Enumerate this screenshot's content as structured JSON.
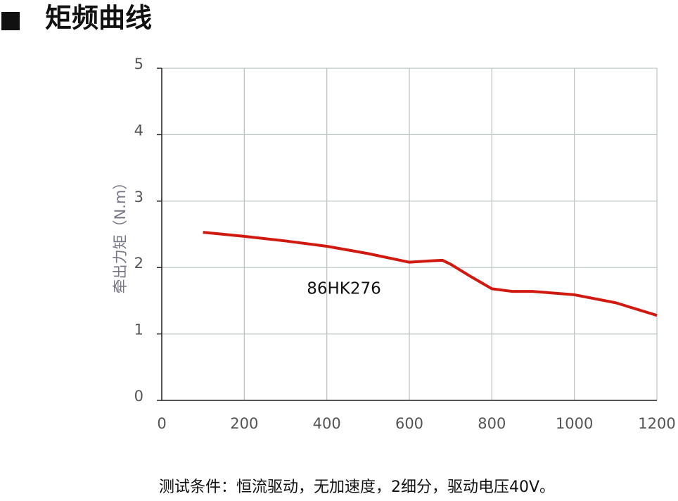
{
  "chart_data": {
    "type": "line",
    "title": "矩频曲线",
    "y_label": "牵出力矩（N.m）",
    "note": "测试条件：恒流驱动，无加速度，2细分，驱动电压40V。",
    "x": [
      100,
      200,
      300,
      400,
      500,
      600,
      650,
      680,
      700,
      750,
      800,
      850,
      900,
      1000,
      1100,
      1200
    ],
    "series": [
      {
        "name": "86HK276",
        "color": "#d01a10",
        "values": [
          2.53,
          2.47,
          2.4,
          2.32,
          2.21,
          2.08,
          2.1,
          2.11,
          2.05,
          1.86,
          1.68,
          1.64,
          1.64,
          1.59,
          1.47,
          1.28
        ]
      }
    ],
    "xlim": [
      0,
      1200
    ],
    "xticks": [
      0,
      200,
      400,
      600,
      800,
      1000,
      1200
    ],
    "ylim": [
      0,
      5
    ],
    "yticks": [
      0,
      1,
      2,
      3,
      4,
      5
    ],
    "grid": true
  }
}
